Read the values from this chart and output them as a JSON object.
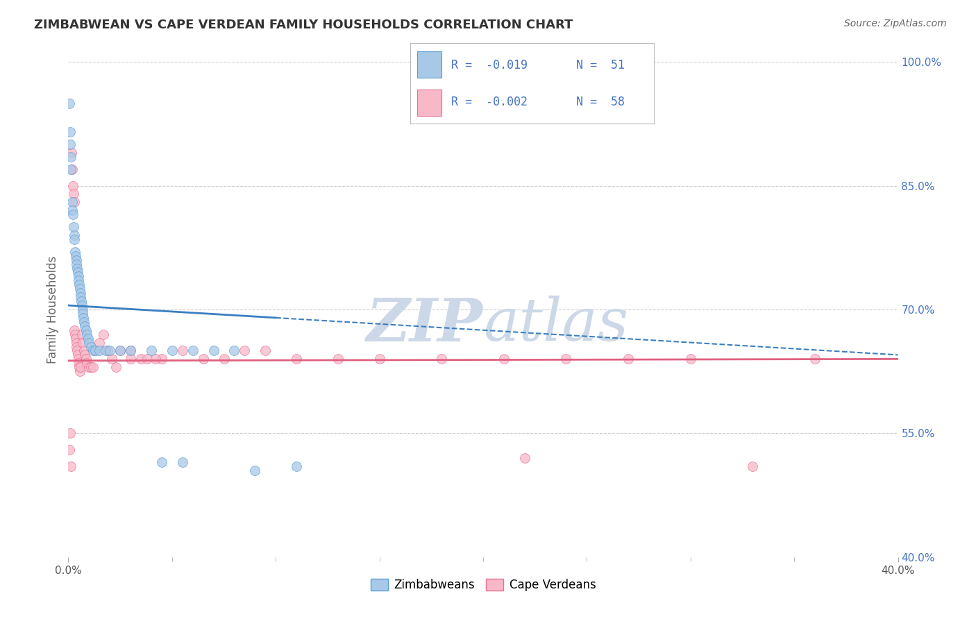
{
  "title": "ZIMBABWEAN VS CAPE VERDEAN FAMILY HOUSEHOLDS CORRELATION CHART",
  "source": "Source: ZipAtlas.com",
  "ylabel_label": "Family Households",
  "xlim": [
    0.0,
    40.0
  ],
  "ylim": [
    40.0,
    100.0
  ],
  "yticks": [
    40.0,
    55.0,
    70.0,
    85.0,
    100.0
  ],
  "legend_r1": "-0.019",
  "legend_n1": "51",
  "legend_r2": "-0.002",
  "legend_n2": "58",
  "zim_label": "Zimbabweans",
  "cape_label": "Cape Verdeans",
  "blue_color": "#a8c8e8",
  "blue_edge_color": "#5a9fd4",
  "blue_line_color": "#3a7fc1",
  "pink_color": "#f8b8c8",
  "pink_edge_color": "#e87090",
  "pink_line_color": "#e06080",
  "background_color": "#ffffff",
  "grid_color": "#cccccc",
  "watermark_color": "#ccd8e8",
  "title_color": "#333333",
  "source_color": "#666666",
  "tick_color": "#4472c4",
  "zim_trendline": [
    0.0,
    70.5,
    40.0,
    64.5
  ],
  "cape_trendline": [
    0.0,
    63.8,
    40.0,
    64.0
  ],
  "zim_x": [
    0.05,
    0.07,
    0.08,
    0.12,
    0.13,
    0.18,
    0.2,
    0.22,
    0.25,
    0.28,
    0.3,
    0.32,
    0.35,
    0.38,
    0.4,
    0.42,
    0.45,
    0.48,
    0.5,
    0.52,
    0.55,
    0.58,
    0.6,
    0.62,
    0.65,
    0.68,
    0.7,
    0.72,
    0.75,
    0.8,
    0.85,
    0.9,
    0.95,
    1.0,
    1.1,
    1.2,
    1.3,
    1.5,
    1.8,
    2.0,
    2.5,
    3.0,
    4.0,
    5.0,
    6.0,
    7.0,
    8.0,
    4.5,
    5.5,
    9.0,
    11.0
  ],
  "zim_y": [
    95.0,
    91.5,
    90.0,
    88.5,
    87.0,
    83.0,
    82.0,
    81.5,
    80.0,
    79.0,
    78.5,
    77.0,
    76.5,
    76.0,
    75.5,
    75.0,
    74.5,
    74.0,
    73.5,
    73.0,
    72.5,
    72.0,
    71.5,
    71.0,
    70.5,
    70.0,
    69.5,
    69.0,
    68.5,
    68.0,
    67.5,
    67.0,
    66.5,
    66.0,
    65.5,
    65.0,
    65.0,
    65.0,
    65.0,
    65.0,
    65.0,
    65.0,
    65.0,
    65.0,
    65.0,
    65.0,
    65.0,
    51.5,
    51.5,
    50.5,
    51.0
  ],
  "cape_x": [
    0.06,
    0.1,
    0.12,
    0.15,
    0.2,
    0.22,
    0.25,
    0.28,
    0.3,
    0.32,
    0.35,
    0.38,
    0.4,
    0.42,
    0.45,
    0.48,
    0.5,
    0.52,
    0.55,
    0.6,
    0.65,
    0.7,
    0.75,
    0.8,
    0.85,
    0.9,
    1.0,
    1.1,
    1.2,
    1.3,
    1.5,
    1.7,
    1.9,
    2.1,
    2.3,
    2.5,
    3.0,
    3.5,
    4.5,
    5.5,
    6.5,
    7.5,
    8.5,
    9.5,
    11.0,
    13.0,
    15.0,
    18.0,
    21.0,
    24.0,
    27.0,
    30.0,
    33.0,
    36.0,
    3.0,
    3.8,
    4.2,
    22.0
  ],
  "cape_y": [
    53.0,
    55.0,
    51.0,
    89.0,
    87.0,
    85.0,
    84.0,
    83.0,
    67.5,
    67.0,
    66.5,
    66.0,
    65.5,
    65.0,
    64.5,
    64.0,
    63.5,
    63.0,
    62.5,
    63.0,
    67.0,
    66.0,
    65.0,
    64.5,
    64.0,
    63.5,
    63.0,
    63.0,
    63.0,
    65.0,
    66.0,
    67.0,
    65.0,
    64.0,
    63.0,
    65.0,
    65.0,
    64.0,
    64.0,
    65.0,
    64.0,
    64.0,
    65.0,
    65.0,
    64.0,
    64.0,
    64.0,
    64.0,
    64.0,
    64.0,
    64.0,
    64.0,
    51.0,
    64.0,
    64.0,
    64.0,
    64.0,
    52.0
  ]
}
